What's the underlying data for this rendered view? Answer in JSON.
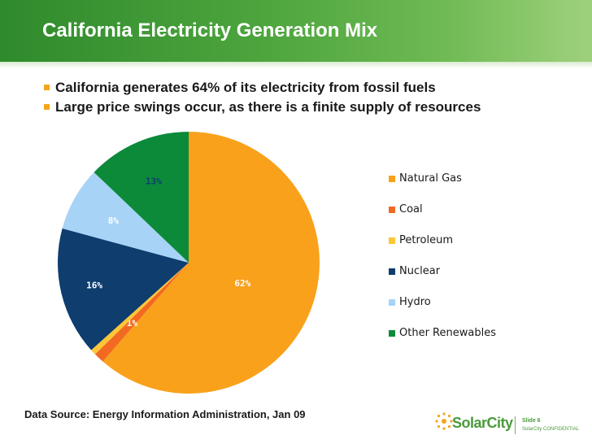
{
  "slide": {
    "title": "California Electricity Generation Mix",
    "bullets": [
      "California generates 64% of its electricity from fossil fuels",
      "Large price swings occur, as there is a finite supply of resources"
    ],
    "source": "Data Source: Energy Information Administration, Jan 09"
  },
  "footer": {
    "logo": "SolarCity",
    "slide_number": "Slide 6",
    "confidential": "SolarCity CONFIDENTIAL"
  },
  "colors": {
    "header_green": "#4ea53e",
    "bullet_orange": "#f4a51c",
    "logo_green": "#4a9a3a"
  },
  "chart_data": {
    "type": "pie",
    "start_angle_deg": 0,
    "direction": "clockwise",
    "legend_position": "right",
    "slices": [
      {
        "name": "Natural Gas",
        "value": 62,
        "label": "62%",
        "color": "#f9a11b",
        "label_color": "#ffffff"
      },
      {
        "name": "Coal",
        "value": 1.3,
        "label": "1%",
        "color": "#f26a21",
        "label_color": "#ffffff"
      },
      {
        "name": "Petroleum",
        "value": 0.7,
        "label": "",
        "color": "#fcc636",
        "label_color": "#ffffff"
      },
      {
        "name": "Nuclear",
        "value": 16,
        "label": "16%",
        "color": "#0e3d6e",
        "label_color": "#ffffff"
      },
      {
        "name": "Hydro",
        "value": 8,
        "label": "8%",
        "color": "#a7d3f7",
        "label_color": "#ffffff"
      },
      {
        "name": "Other Renewables",
        "value": 13,
        "label": "13%",
        "color": "#0c8a3a",
        "label_color": "#0e3d6e"
      }
    ]
  }
}
